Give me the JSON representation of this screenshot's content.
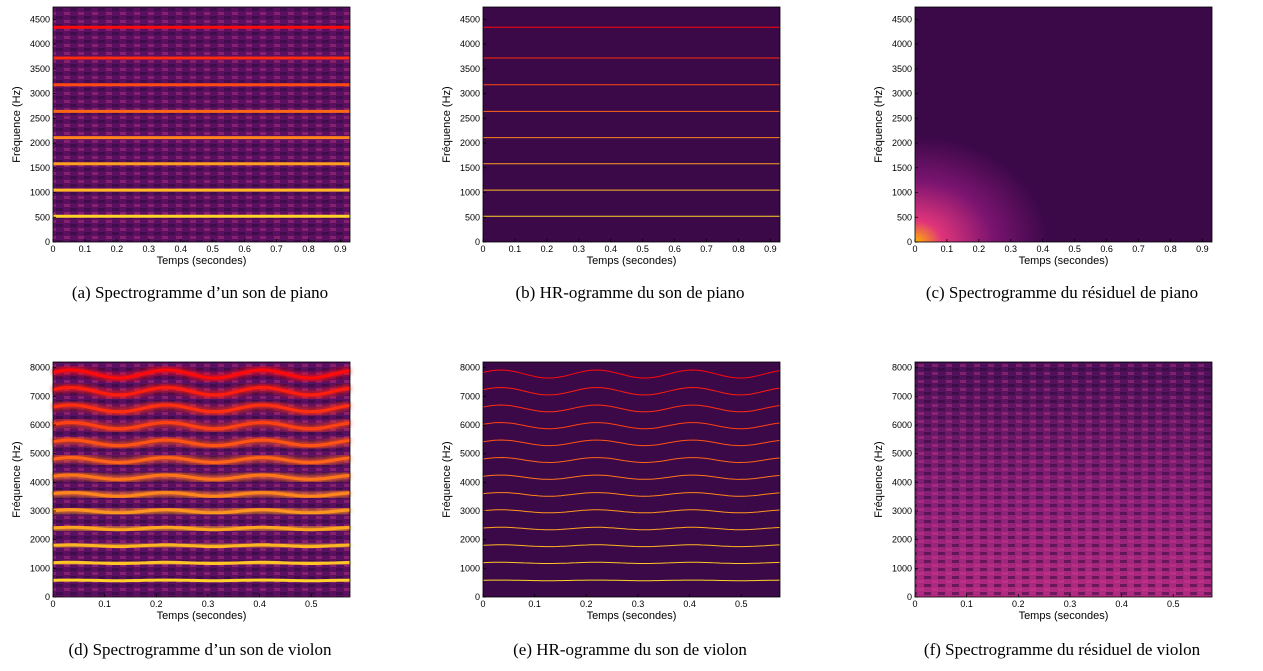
{
  "chart_data": [
    {
      "type": "heatmap",
      "style": "spectrogram",
      "caption": "(a) Spectrogramme d’un son de piano",
      "xlabel": "Temps (secondes)",
      "ylabel": "Fréquence (Hz)",
      "xlim": [
        0,
        0.93
      ],
      "ylim": [
        0,
        4750
      ],
      "xticks": [
        0,
        0.1,
        0.2,
        0.3,
        0.4,
        0.5,
        0.6,
        0.7,
        0.8,
        0.9
      ],
      "yticks": [
        0,
        500,
        1000,
        1500,
        2000,
        2500,
        3000,
        3500,
        4000,
        4500
      ],
      "harmonics": [
        520,
        1050,
        1580,
        2110,
        2640,
        3180,
        3720,
        4340
      ],
      "vibrato": false
    },
    {
      "type": "heatmap",
      "style": "hr",
      "caption": "(b) HR-ogramme du son de piano",
      "xlabel": "Temps (secondes)",
      "ylabel": "Fréquence (Hz)",
      "xlim": [
        0,
        0.93
      ],
      "ylim": [
        0,
        4750
      ],
      "xticks": [
        0,
        0.1,
        0.2,
        0.3,
        0.4,
        0.5,
        0.6,
        0.7,
        0.8,
        0.9
      ],
      "yticks": [
        0,
        500,
        1000,
        1500,
        2000,
        2500,
        3000,
        3500,
        4000,
        4500
      ],
      "harmonics": [
        520,
        1050,
        1580,
        2110,
        2640,
        3180,
        3720,
        4340
      ],
      "vibrato": false
    },
    {
      "type": "heatmap",
      "style": "residual",
      "caption": "(c) Spectrogramme du résiduel de piano",
      "xlabel": "Temps (secondes)",
      "ylabel": "Fréquence (Hz)",
      "xlim": [
        0,
        0.93
      ],
      "ylim": [
        0,
        4750
      ],
      "xticks": [
        0,
        0.1,
        0.2,
        0.3,
        0.4,
        0.5,
        0.6,
        0.7,
        0.8,
        0.9
      ],
      "yticks": [
        0,
        500,
        1000,
        1500,
        2000,
        2500,
        3000,
        3500,
        4000,
        4500
      ]
    },
    {
      "type": "heatmap",
      "style": "spectrogram",
      "caption": "(d) Spectrogramme d’un son de violon",
      "xlabel": "Temps (secondes)",
      "ylabel": "Fréquence (Hz)",
      "xlim": [
        0,
        0.575
      ],
      "ylim": [
        0,
        8200
      ],
      "xticks": [
        0,
        0.1,
        0.2,
        0.3,
        0.4,
        0.5
      ],
      "yticks": [
        0,
        1000,
        2000,
        3000,
        4000,
        5000,
        6000,
        7000,
        8000
      ],
      "harmonics": [
        580,
        1190,
        1790,
        2390,
        2990,
        3580,
        4180,
        4780,
        5380,
        5980,
        6580,
        7180,
        7780
      ],
      "vibrato": true
    },
    {
      "type": "heatmap",
      "style": "hr",
      "caption": "(e) HR-ogramme du son de violon",
      "xlabel": "Temps (secondes)",
      "ylabel": "Fréquence (Hz)",
      "xlim": [
        0,
        0.575
      ],
      "ylim": [
        0,
        8200
      ],
      "xticks": [
        0,
        0.1,
        0.2,
        0.3,
        0.4,
        0.5
      ],
      "yticks": [
        0,
        1000,
        2000,
        3000,
        4000,
        5000,
        6000,
        7000,
        8000
      ],
      "harmonics": [
        580,
        1190,
        1790,
        2390,
        2990,
        3580,
        4180,
        4780,
        5380,
        5980,
        6580,
        7180,
        7780
      ],
      "vibrato": true
    },
    {
      "type": "heatmap",
      "style": "residual-noise",
      "caption": "(f) Spectrogramme du résiduel de violon",
      "xlabel": "Temps (secondes)",
      "ylabel": "Fréquence (Hz)",
      "xlim": [
        0,
        0.575
      ],
      "ylim": [
        0,
        8200
      ],
      "xticks": [
        0,
        0.1,
        0.2,
        0.3,
        0.4,
        0.5
      ],
      "yticks": [
        0,
        1000,
        2000,
        3000,
        4000,
        5000,
        6000,
        7000,
        8000
      ]
    }
  ]
}
